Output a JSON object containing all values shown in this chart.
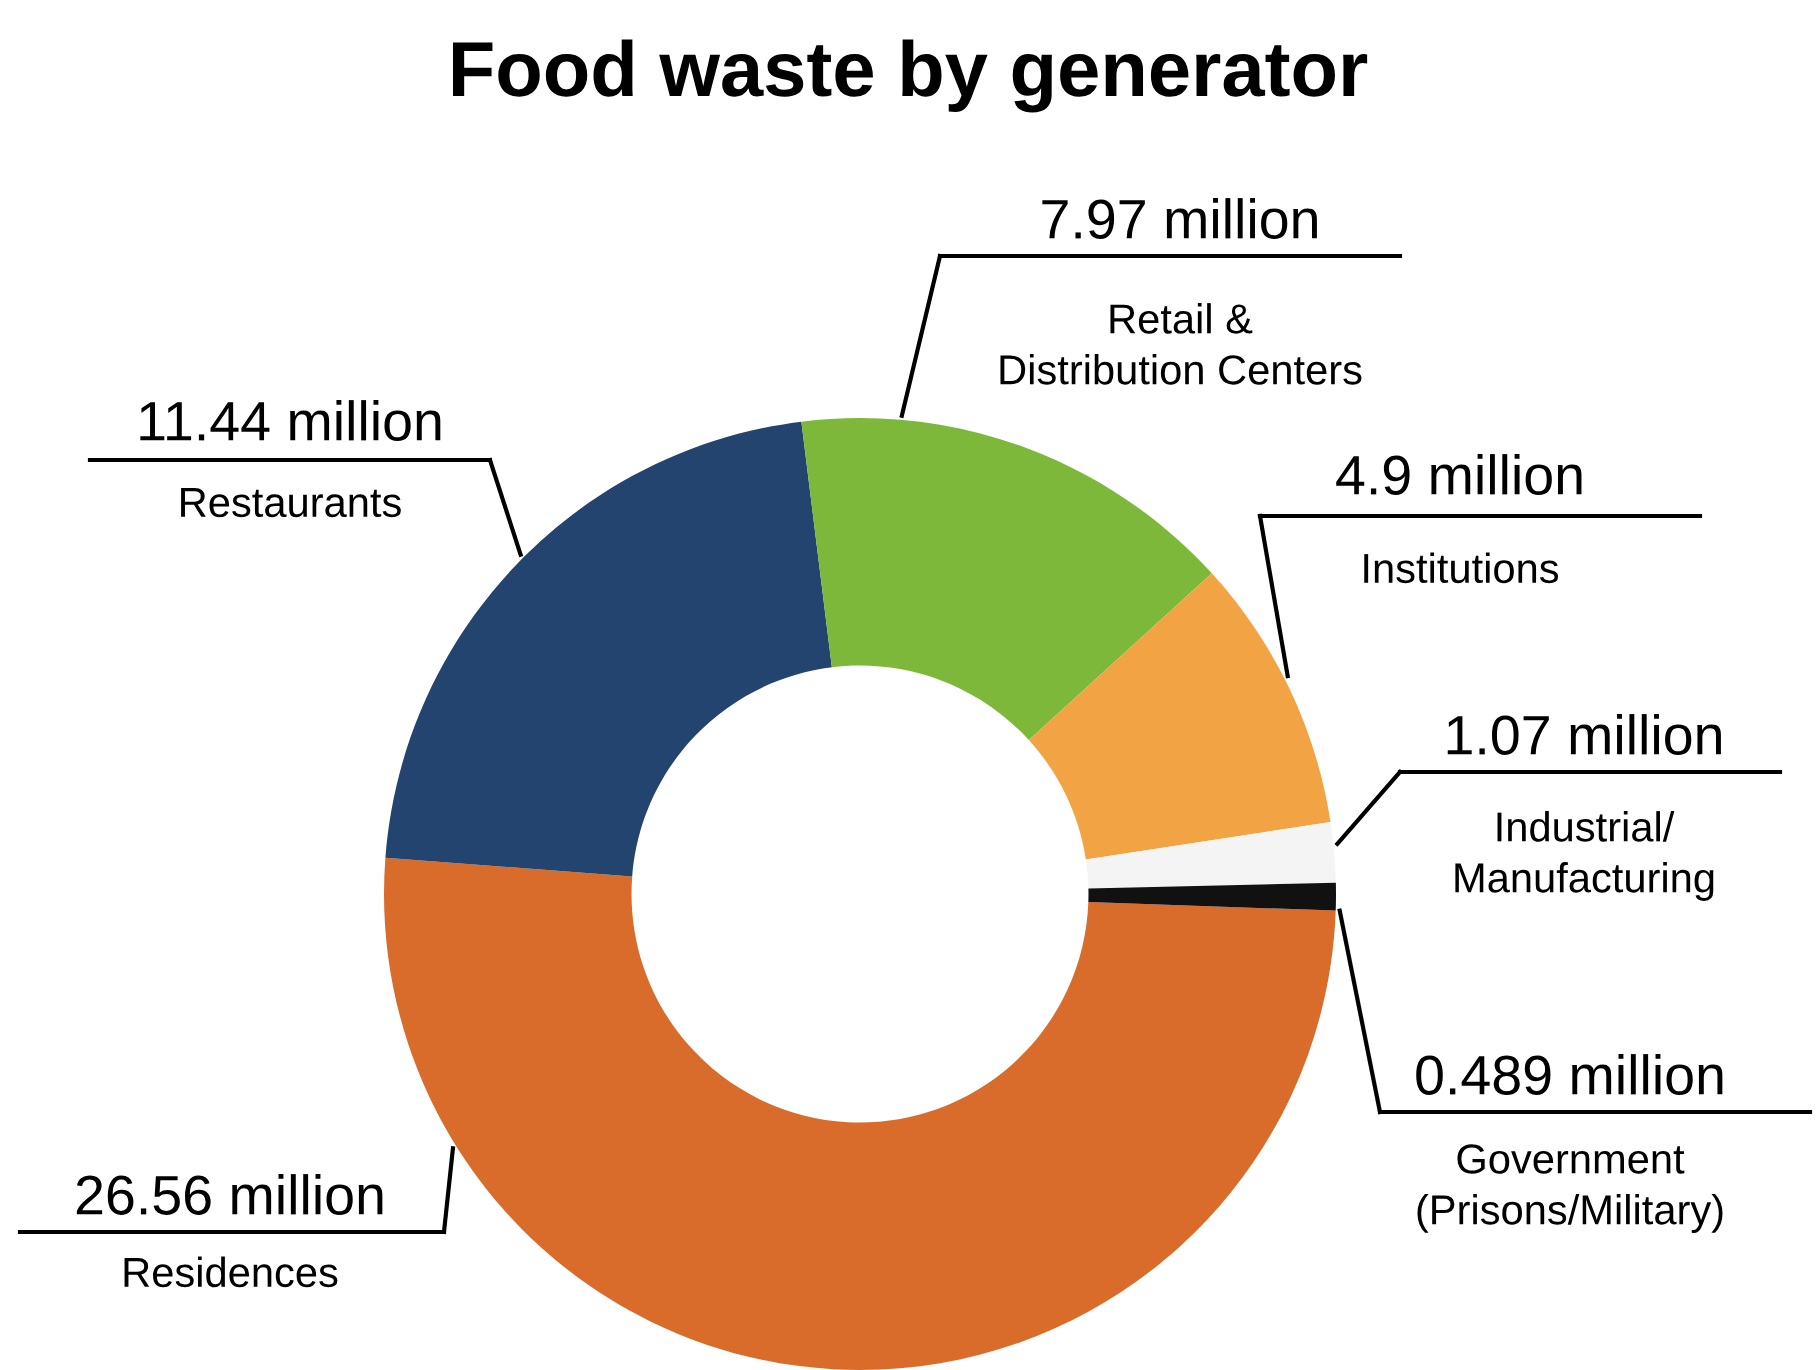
{
  "chart_data": {
    "type": "donut",
    "title": "Food waste by generator",
    "categories": [
      "Residences",
      "Restaurants",
      "Retail &\nDistribution Centers",
      "Institutions",
      "Industrial/\nManufacturing",
      "Government\n(Prisons/Military)"
    ],
    "values": [
      26.56,
      11.44,
      7.97,
      4.9,
      1.07,
      0.489
    ],
    "colors": [
      "#d96b2b",
      "#22446e",
      "#7db83a",
      "#f2a444",
      "#f4f4f4",
      "#111111"
    ],
    "value_labels": [
      "26.56 million",
      "11.44 million",
      "7.97 million",
      "4.9 million",
      "1.07 million",
      "0.489 million"
    ]
  }
}
